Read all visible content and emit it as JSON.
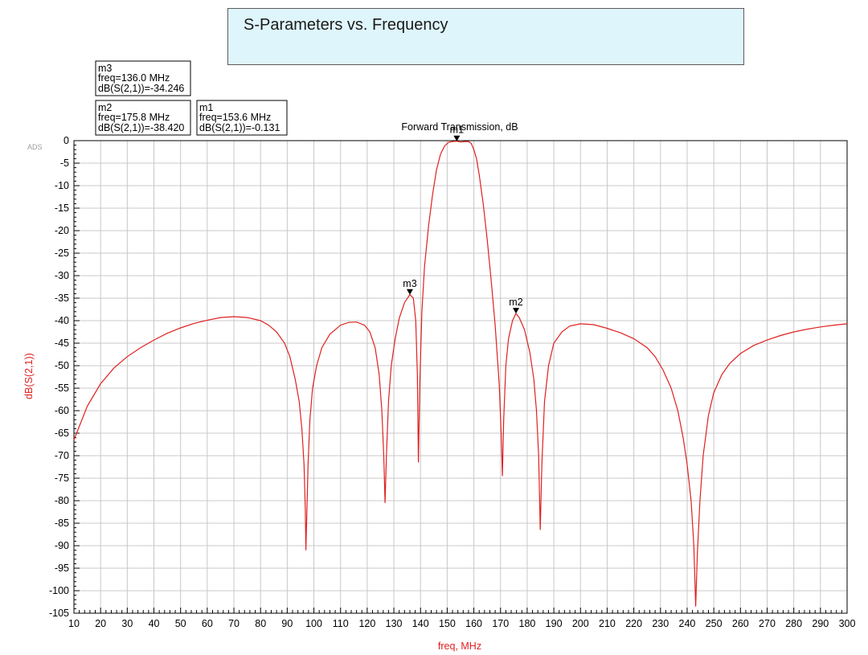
{
  "page": {
    "title": "S-Parameters vs. Frequency",
    "watermark": "ADS"
  },
  "markers": [
    {
      "id": "m1",
      "freq_line": "freq=153.6 MHz",
      "value_line": "dB(S(2,1))=-0.131",
      "freq": 153.6,
      "value": -0.131
    },
    {
      "id": "m2",
      "freq_line": "freq=175.8 MHz",
      "value_line": "dB(S(2,1))=-38.420",
      "freq": 175.8,
      "value": -38.42
    },
    {
      "id": "m3",
      "freq_line": "freq=136.0 MHz",
      "value_line": "dB(S(2,1))=-34.246",
      "freq": 136.0,
      "value": -34.246
    }
  ],
  "chart_data": {
    "type": "line",
    "title": "Forward Transmission, dB",
    "xlabel": "freq, MHz",
    "ylabel": "dB(S(2,1))",
    "xlim": [
      10,
      300
    ],
    "ylim": [
      -105,
      0
    ],
    "x_ticks": [
      10,
      20,
      30,
      40,
      50,
      60,
      70,
      80,
      90,
      100,
      110,
      120,
      130,
      140,
      150,
      160,
      170,
      180,
      190,
      200,
      210,
      220,
      230,
      240,
      250,
      260,
      270,
      280,
      290,
      300
    ],
    "y_ticks": [
      0,
      -5,
      -10,
      -15,
      -20,
      -25,
      -30,
      -35,
      -40,
      -45,
      -50,
      -55,
      -60,
      -65,
      -70,
      -75,
      -80,
      -85,
      -90,
      -95,
      -100,
      -105
    ],
    "grid": true,
    "line_color": "#e02020",
    "series": [
      {
        "values": [
          [
            10,
            -66.5
          ],
          [
            15,
            -59
          ],
          [
            20,
            -54
          ],
          [
            25,
            -50.5
          ],
          [
            30,
            -48
          ],
          [
            35,
            -46
          ],
          [
            40,
            -44.3
          ],
          [
            45,
            -42.8
          ],
          [
            50,
            -41.6
          ],
          [
            55,
            -40.6
          ],
          [
            60,
            -39.9
          ],
          [
            65,
            -39.3
          ],
          [
            70,
            -39.1
          ],
          [
            75,
            -39.3
          ],
          [
            80,
            -40
          ],
          [
            83,
            -41
          ],
          [
            86,
            -42.5
          ],
          [
            89,
            -45
          ],
          [
            91,
            -48
          ],
          [
            93,
            -53
          ],
          [
            94.5,
            -58
          ],
          [
            95.5,
            -64
          ],
          [
            96.3,
            -72
          ],
          [
            96.8,
            -82
          ],
          [
            97,
            -91
          ],
          [
            97.3,
            -84
          ],
          [
            97.8,
            -72
          ],
          [
            98.5,
            -62
          ],
          [
            99.5,
            -55
          ],
          [
            101,
            -50
          ],
          [
            103,
            -46
          ],
          [
            106,
            -43
          ],
          [
            110,
            -41
          ],
          [
            113,
            -40.4
          ],
          [
            116,
            -40.3
          ],
          [
            119,
            -41
          ],
          [
            121,
            -42.5
          ],
          [
            123,
            -46
          ],
          [
            124.5,
            -52
          ],
          [
            125.5,
            -60
          ],
          [
            126.2,
            -70
          ],
          [
            126.7,
            -80.5
          ],
          [
            127.2,
            -70
          ],
          [
            128,
            -58
          ],
          [
            129,
            -50
          ],
          [
            130.5,
            -44
          ],
          [
            132,
            -39.5
          ],
          [
            134,
            -36
          ],
          [
            136,
            -34.2
          ],
          [
            137.3,
            -35
          ],
          [
            138.2,
            -40
          ],
          [
            138.8,
            -52
          ],
          [
            139.2,
            -71.5
          ],
          [
            139.7,
            -55
          ],
          [
            140.5,
            -38
          ],
          [
            141.5,
            -28
          ],
          [
            143,
            -19
          ],
          [
            144.5,
            -12
          ],
          [
            146,
            -6.5
          ],
          [
            147.5,
            -3
          ],
          [
            149,
            -1.2
          ],
          [
            150.5,
            -0.4
          ],
          [
            152,
            -0.2
          ],
          [
            153.6,
            -0.13
          ],
          [
            155,
            -0.3
          ],
          [
            156.5,
            -0.2
          ],
          [
            158,
            -0.2
          ],
          [
            159,
            -0.6
          ],
          [
            160,
            -2
          ],
          [
            161,
            -4
          ],
          [
            162,
            -7.5
          ],
          [
            163.5,
            -14
          ],
          [
            165,
            -22
          ],
          [
            166.5,
            -31
          ],
          [
            168,
            -41
          ],
          [
            169.5,
            -54
          ],
          [
            170.3,
            -66
          ],
          [
            170.7,
            -74.5
          ],
          [
            171.2,
            -62
          ],
          [
            172,
            -50
          ],
          [
            173,
            -44
          ],
          [
            174.5,
            -40
          ],
          [
            175.8,
            -38.4
          ],
          [
            177,
            -39.3
          ],
          [
            179,
            -42
          ],
          [
            181,
            -47
          ],
          [
            182.5,
            -53
          ],
          [
            183.5,
            -60
          ],
          [
            184.3,
            -70
          ],
          [
            184.9,
            -86.5
          ],
          [
            185.5,
            -72
          ],
          [
            186.5,
            -58
          ],
          [
            188,
            -50
          ],
          [
            190,
            -45
          ],
          [
            193,
            -42.5
          ],
          [
            196,
            -41.2
          ],
          [
            200,
            -40.7
          ],
          [
            205,
            -40.9
          ],
          [
            210,
            -41.7
          ],
          [
            215,
            -42.7
          ],
          [
            220,
            -44
          ],
          [
            225,
            -46
          ],
          [
            228,
            -48
          ],
          [
            231,
            -51
          ],
          [
            234,
            -55
          ],
          [
            236.5,
            -60
          ],
          [
            238.5,
            -66
          ],
          [
            240,
            -72
          ],
          [
            241.5,
            -80
          ],
          [
            242.5,
            -90
          ],
          [
            243.2,
            -103.5
          ],
          [
            243.8,
            -92
          ],
          [
            244.8,
            -80
          ],
          [
            246,
            -70
          ],
          [
            248,
            -61
          ],
          [
            250,
            -56
          ],
          [
            253,
            -52
          ],
          [
            256,
            -49.5
          ],
          [
            260,
            -47.3
          ],
          [
            265,
            -45.5
          ],
          [
            270,
            -44.3
          ],
          [
            275,
            -43.3
          ],
          [
            280,
            -42.5
          ],
          [
            285,
            -41.9
          ],
          [
            290,
            -41.4
          ],
          [
            295,
            -41
          ],
          [
            300,
            -40.7
          ]
        ]
      }
    ]
  }
}
